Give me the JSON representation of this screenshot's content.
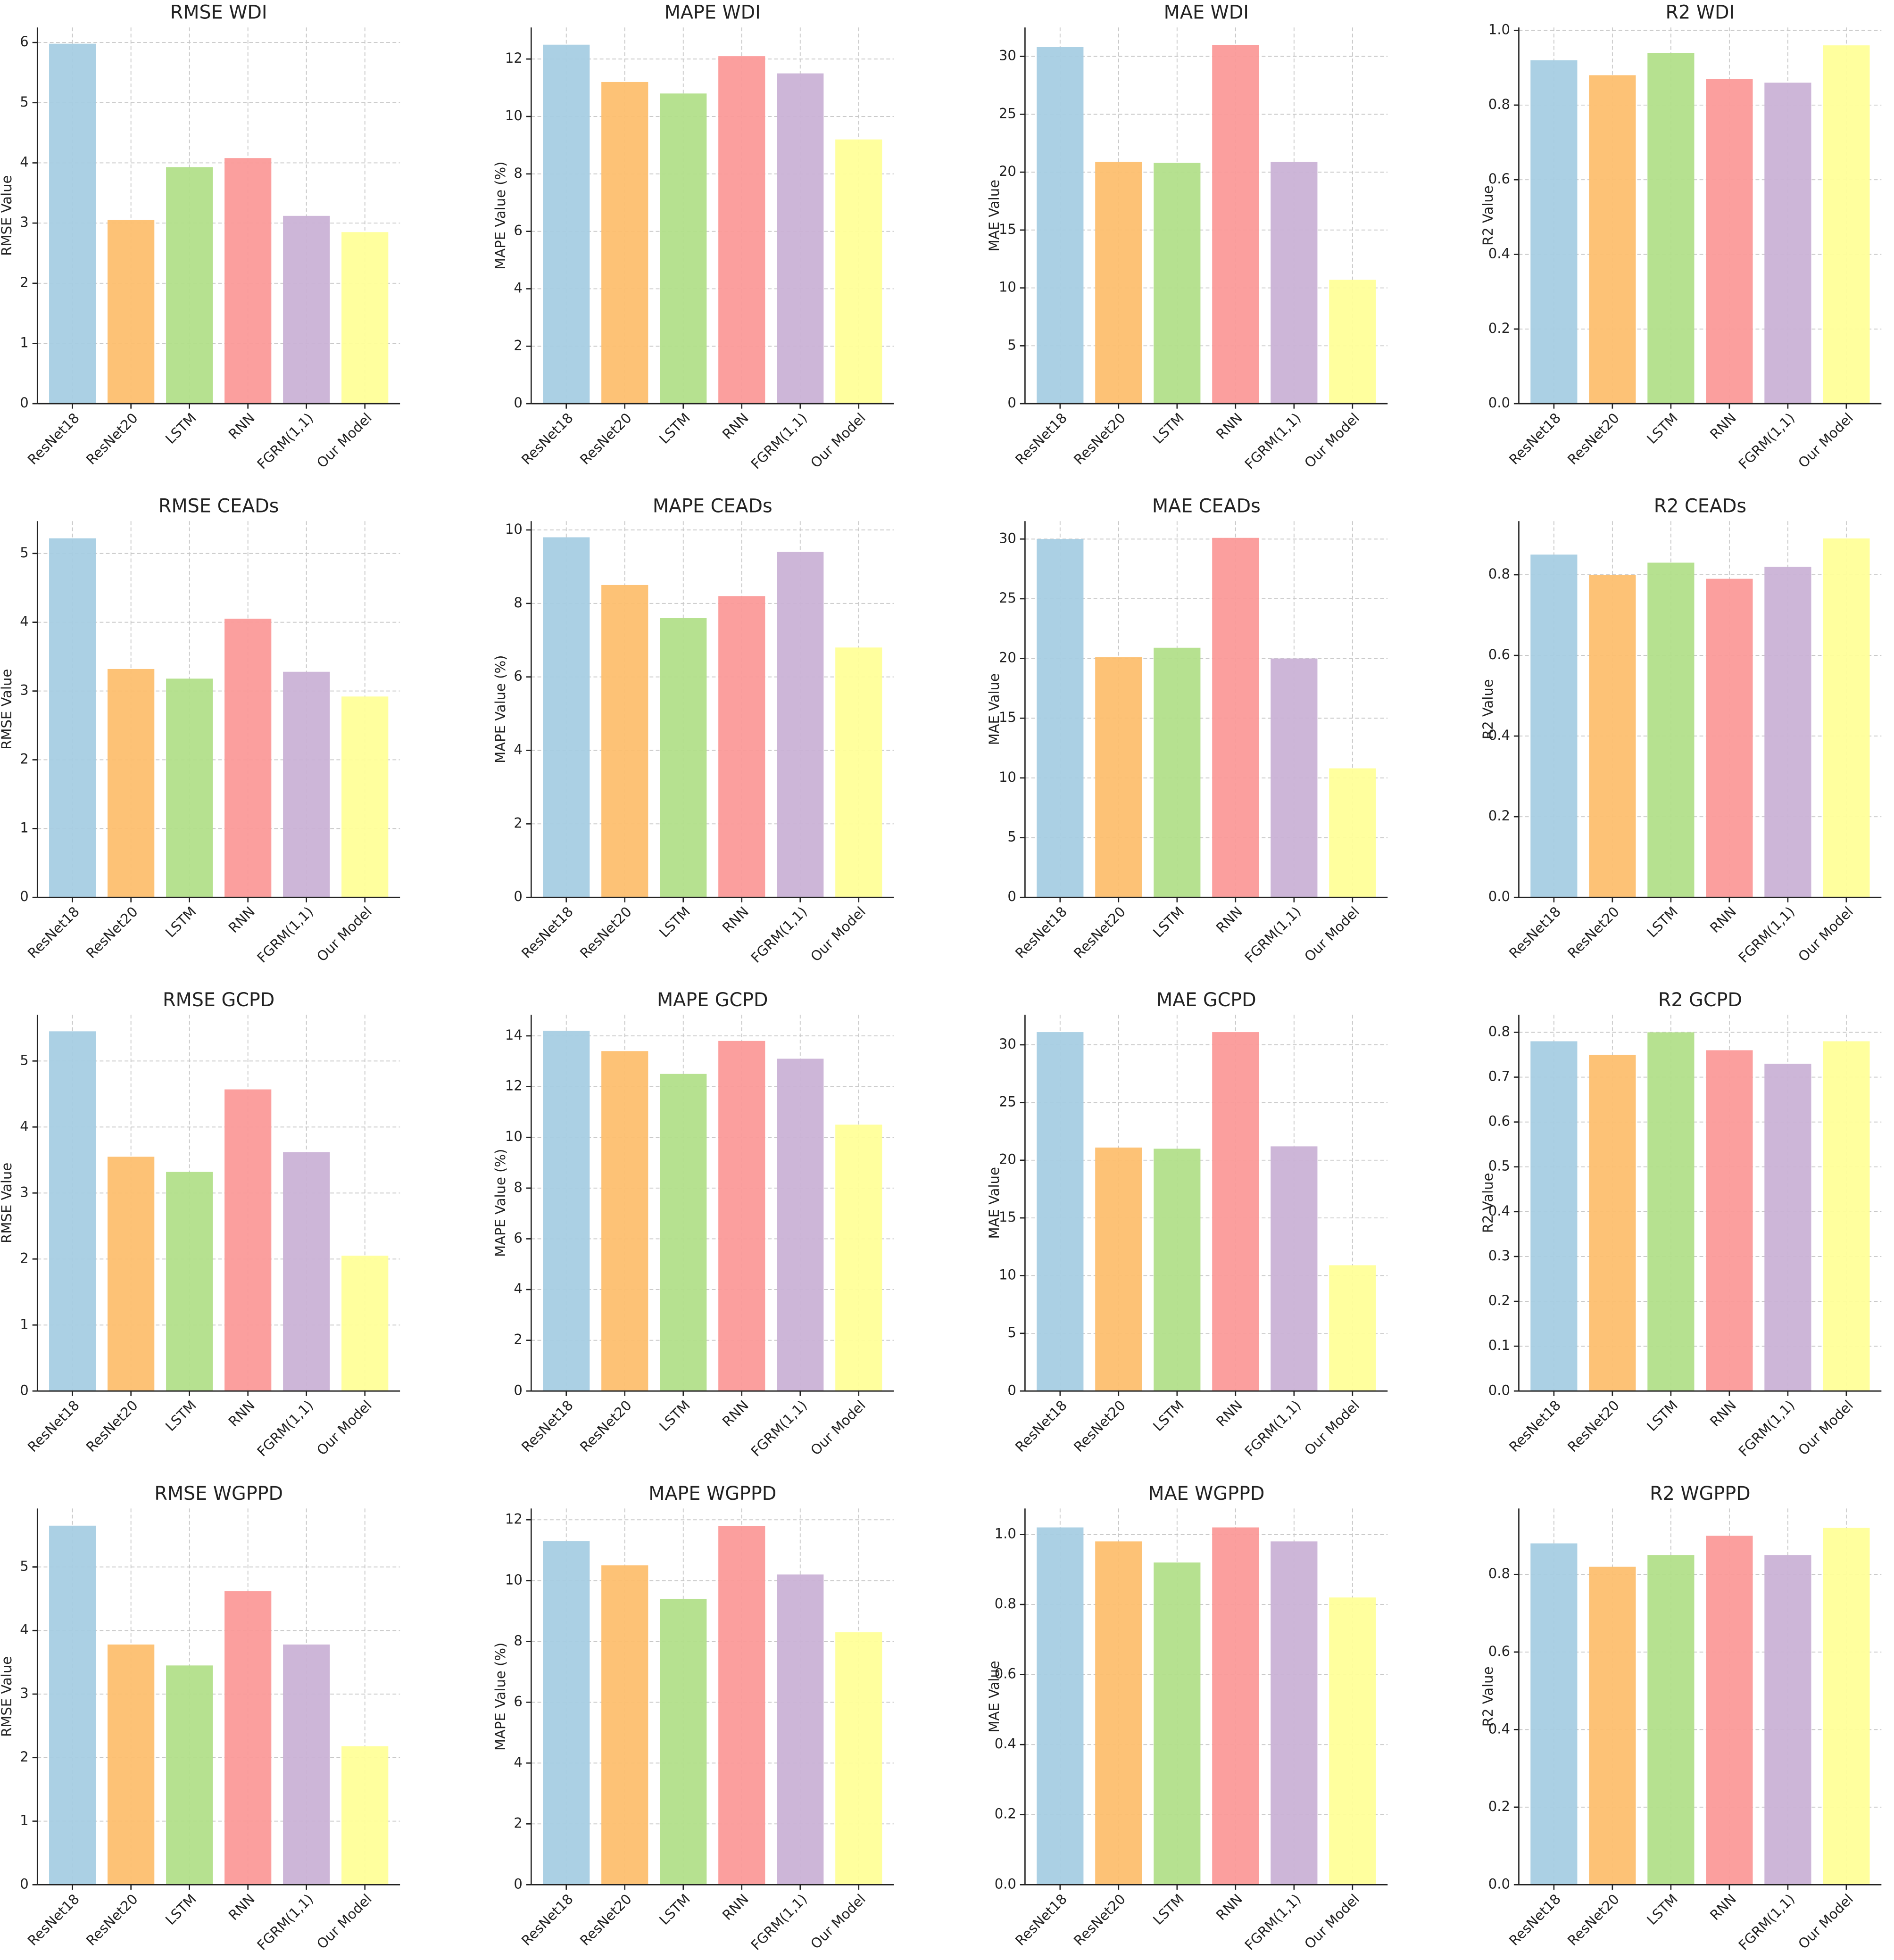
{
  "chart_data": [
    {
      "type": "bar",
      "title": "RMSE WDI",
      "y_label": "RMSE Value",
      "categories": [
        "ResNet18",
        "ResNet20",
        "LSTM",
        "RNN",
        "FGRM(1,1)",
        "Our Model"
      ],
      "values": [
        5.98,
        3.05,
        3.93,
        4.08,
        3.12,
        2.85
      ],
      "colors": [
        "#a6cee3",
        "#fdbf6f",
        "#b2df8a",
        "#fb9a99",
        "#cab2d6",
        "#ffff99"
      ],
      "ylim": [
        0,
        6.25
      ],
      "yticks": [
        0,
        1,
        2,
        3,
        4,
        5,
        6
      ],
      "grid": true
    },
    {
      "type": "bar",
      "title": "MAPE WDI",
      "y_label": "MAPE Value (%)",
      "categories": [
        "ResNet18",
        "ResNet20",
        "LSTM",
        "RNN",
        "FGRM(1,1)",
        "Our Model"
      ],
      "values": [
        12.5,
        11.2,
        10.8,
        12.1,
        11.5,
        9.2
      ],
      "colors": [
        "#a6cee3",
        "#fdbf6f",
        "#b2df8a",
        "#fb9a99",
        "#cab2d6",
        "#ffff99"
      ],
      "ylim": [
        0,
        13.1
      ],
      "yticks": [
        0,
        2,
        4,
        6,
        8,
        10,
        12
      ],
      "grid": true
    },
    {
      "type": "bar",
      "title": "MAE WDI",
      "y_label": "MAE Value",
      "categories": [
        "ResNet18",
        "ResNet20",
        "LSTM",
        "RNN",
        "FGRM(1,1)",
        "Our Model"
      ],
      "values": [
        30.8,
        20.9,
        20.8,
        31.0,
        20.9,
        10.7
      ],
      "colors": [
        "#a6cee3",
        "#fdbf6f",
        "#b2df8a",
        "#fb9a99",
        "#cab2d6",
        "#ffff99"
      ],
      "ylim": [
        0,
        32.5
      ],
      "yticks": [
        0,
        5,
        10,
        15,
        20,
        25,
        30
      ],
      "grid": true
    },
    {
      "type": "bar",
      "title": "R2 WDI",
      "y_label": "R2 Value",
      "categories": [
        "ResNet18",
        "ResNet20",
        "LSTM",
        "RNN",
        "FGRM(1,1)",
        "Our Model"
      ],
      "values": [
        0.92,
        0.88,
        0.94,
        0.87,
        0.86,
        0.96
      ],
      "colors": [
        "#a6cee3",
        "#fdbf6f",
        "#b2df8a",
        "#fb9a99",
        "#cab2d6",
        "#ffff99"
      ],
      "ylim": [
        0,
        1.008
      ],
      "yticks": [
        {
          "value": 0,
          "label": "0.0"
        },
        0.2,
        0.4,
        0.6,
        0.8,
        {
          "value": 1,
          "label": "1.0"
        }
      ],
      "grid": true
    },
    {
      "type": "bar",
      "title": "RMSE CEADs",
      "y_label": "RMSE Value",
      "categories": [
        "ResNet18",
        "ResNet20",
        "LSTM",
        "RNN",
        "FGRM(1,1)",
        "Our Model"
      ],
      "values": [
        5.22,
        3.32,
        3.18,
        4.05,
        3.28,
        2.92
      ],
      "colors": [
        "#a6cee3",
        "#fdbf6f",
        "#b2df8a",
        "#fb9a99",
        "#cab2d6",
        "#ffff99"
      ],
      "ylim": [
        0,
        5.47
      ],
      "yticks": [
        0,
        1,
        2,
        3,
        4,
        5
      ],
      "grid": true
    },
    {
      "type": "bar",
      "title": "MAPE CEADs",
      "y_label": "MAPE Value (%)",
      "categories": [
        "ResNet18",
        "ResNet20",
        "LSTM",
        "RNN",
        "FGRM(1,1)",
        "Our Model"
      ],
      "values": [
        9.8,
        8.5,
        7.6,
        8.2,
        9.4,
        6.8
      ],
      "colors": [
        "#a6cee3",
        "#fdbf6f",
        "#b2df8a",
        "#fb9a99",
        "#cab2d6",
        "#ffff99"
      ],
      "ylim": [
        0,
        10.24
      ],
      "yticks": [
        0,
        2,
        4,
        6,
        8,
        10
      ],
      "grid": true
    },
    {
      "type": "bar",
      "title": "MAE CEADs",
      "y_label": "MAE Value",
      "categories": [
        "ResNet18",
        "ResNet20",
        "LSTM",
        "RNN",
        "FGRM(1,1)",
        "Our Model"
      ],
      "values": [
        30.0,
        20.1,
        20.9,
        30.1,
        20.0,
        10.8
      ],
      "colors": [
        "#a6cee3",
        "#fdbf6f",
        "#b2df8a",
        "#fb9a99",
        "#cab2d6",
        "#ffff99"
      ],
      "ylim": [
        0,
        31.5
      ],
      "yticks": [
        0,
        5,
        10,
        15,
        20,
        25,
        30
      ],
      "grid": true
    },
    {
      "type": "bar",
      "title": "R2 CEADs",
      "y_label": "R2 Value",
      "categories": [
        "ResNet18",
        "ResNet20",
        "LSTM",
        "RNN",
        "FGRM(1,1)",
        "Our Model"
      ],
      "values": [
        0.85,
        0.8,
        0.83,
        0.79,
        0.82,
        0.89
      ],
      "colors": [
        "#a6cee3",
        "#fdbf6f",
        "#b2df8a",
        "#fb9a99",
        "#cab2d6",
        "#ffff99"
      ],
      "ylim": [
        0,
        0.933
      ],
      "yticks": [
        {
          "value": 0,
          "label": "0.0"
        },
        0.2,
        0.4,
        0.6,
        0.8
      ],
      "grid": true
    },
    {
      "type": "bar",
      "title": "RMSE GCPD",
      "y_label": "RMSE Value",
      "categories": [
        "ResNet18",
        "ResNet20",
        "LSTM",
        "RNN",
        "FGRM(1,1)",
        "Our Model"
      ],
      "values": [
        5.45,
        3.55,
        3.32,
        4.57,
        3.62,
        2.05
      ],
      "colors": [
        "#a6cee3",
        "#fdbf6f",
        "#b2df8a",
        "#fb9a99",
        "#cab2d6",
        "#ffff99"
      ],
      "ylim": [
        0,
        5.7
      ],
      "yticks": [
        0,
        1,
        2,
        3,
        4,
        5
      ],
      "grid": true
    },
    {
      "type": "bar",
      "title": "MAPE GCPD",
      "y_label": "MAPE Value (%)",
      "categories": [
        "ResNet18",
        "ResNet20",
        "LSTM",
        "RNN",
        "FGRM(1,1)",
        "Our Model"
      ],
      "values": [
        14.2,
        13.4,
        12.5,
        13.8,
        13.1,
        10.5
      ],
      "colors": [
        "#a6cee3",
        "#fdbf6f",
        "#b2df8a",
        "#fb9a99",
        "#cab2d6",
        "#ffff99"
      ],
      "ylim": [
        0,
        14.83
      ],
      "yticks": [
        0,
        2,
        4,
        6,
        8,
        10,
        12,
        14
      ],
      "grid": true
    },
    {
      "type": "bar",
      "title": "MAE GCPD",
      "y_label": "MAE Value",
      "categories": [
        "ResNet18",
        "ResNet20",
        "LSTM",
        "RNN",
        "FGRM(1,1)",
        "Our Model"
      ],
      "values": [
        31.1,
        21.1,
        21.0,
        31.1,
        21.2,
        10.9
      ],
      "colors": [
        "#a6cee3",
        "#fdbf6f",
        "#b2df8a",
        "#fb9a99",
        "#cab2d6",
        "#ffff99"
      ],
      "ylim": [
        0,
        32.6
      ],
      "yticks": [
        0,
        5,
        10,
        15,
        20,
        25,
        30
      ],
      "grid": true
    },
    {
      "type": "bar",
      "title": "R2 GCPD",
      "y_label": "R2 Value",
      "categories": [
        "ResNet18",
        "ResNet20",
        "LSTM",
        "RNN",
        "FGRM(1,1)",
        "Our Model"
      ],
      "values": [
        0.78,
        0.75,
        0.8,
        0.76,
        0.73,
        0.78
      ],
      "colors": [
        "#a6cee3",
        "#fdbf6f",
        "#b2df8a",
        "#fb9a99",
        "#cab2d6",
        "#ffff99"
      ],
      "ylim": [
        0,
        0.839
      ],
      "yticks": [
        {
          "value": 0,
          "label": "0.0"
        },
        0.1,
        0.2,
        0.3,
        0.4,
        0.5,
        0.6,
        0.7,
        0.8
      ],
      "grid": true
    },
    {
      "type": "bar",
      "title": "RMSE WGPPD",
      "y_label": "RMSE Value",
      "categories": [
        "ResNet18",
        "ResNet20",
        "LSTM",
        "RNN",
        "FGRM(1,1)",
        "Our Model"
      ],
      "values": [
        5.65,
        3.78,
        3.45,
        4.62,
        3.78,
        2.18
      ],
      "colors": [
        "#a6cee3",
        "#fdbf6f",
        "#b2df8a",
        "#fb9a99",
        "#cab2d6",
        "#ffff99"
      ],
      "ylim": [
        0,
        5.92
      ],
      "yticks": [
        0,
        1,
        2,
        3,
        4,
        5
      ],
      "grid": true
    },
    {
      "type": "bar",
      "title": "MAPE WGPPD",
      "y_label": "MAPE Value (%)",
      "categories": [
        "ResNet18",
        "ResNet20",
        "LSTM",
        "RNN",
        "FGRM(1,1)",
        "Our Model"
      ],
      "values": [
        11.3,
        10.5,
        9.4,
        11.8,
        10.2,
        8.3
      ],
      "colors": [
        "#a6cee3",
        "#fdbf6f",
        "#b2df8a",
        "#fb9a99",
        "#cab2d6",
        "#ffff99"
      ],
      "ylim": [
        0,
        12.37
      ],
      "yticks": [
        0,
        2,
        4,
        6,
        8,
        10,
        12
      ],
      "grid": true
    },
    {
      "type": "bar",
      "title": "MAE WGPPD",
      "y_label": "MAE Value",
      "categories": [
        "ResNet18",
        "ResNet20",
        "LSTM",
        "RNN",
        "FGRM(1,1)",
        "Our Model"
      ],
      "values": [
        1.02,
        0.98,
        0.92,
        1.02,
        0.98,
        0.82
      ],
      "colors": [
        "#a6cee3",
        "#fdbf6f",
        "#b2df8a",
        "#fb9a99",
        "#cab2d6",
        "#ffff99"
      ],
      "ylim": [
        0,
        1.074
      ],
      "yticks": [
        {
          "value": 0,
          "label": "0.0"
        },
        0.2,
        0.4,
        0.6,
        0.8,
        {
          "value": 1,
          "label": "1.0"
        }
      ],
      "grid": true
    },
    {
      "type": "bar",
      "title": "R2 WGPPD",
      "y_label": "R2 Value",
      "categories": [
        "ResNet18",
        "ResNet20",
        "LSTM",
        "RNN",
        "FGRM(1,1)",
        "Our Model"
      ],
      "values": [
        0.88,
        0.82,
        0.85,
        0.9,
        0.85,
        0.92
      ],
      "colors": [
        "#a6cee3",
        "#fdbf6f",
        "#b2df8a",
        "#fb9a99",
        "#cab2d6",
        "#ffff99"
      ],
      "ylim": [
        0,
        0.97
      ],
      "yticks": [
        {
          "value": 0,
          "label": "0.0"
        },
        0.2,
        0.4,
        0.6,
        0.8
      ],
      "grid": true
    }
  ]
}
